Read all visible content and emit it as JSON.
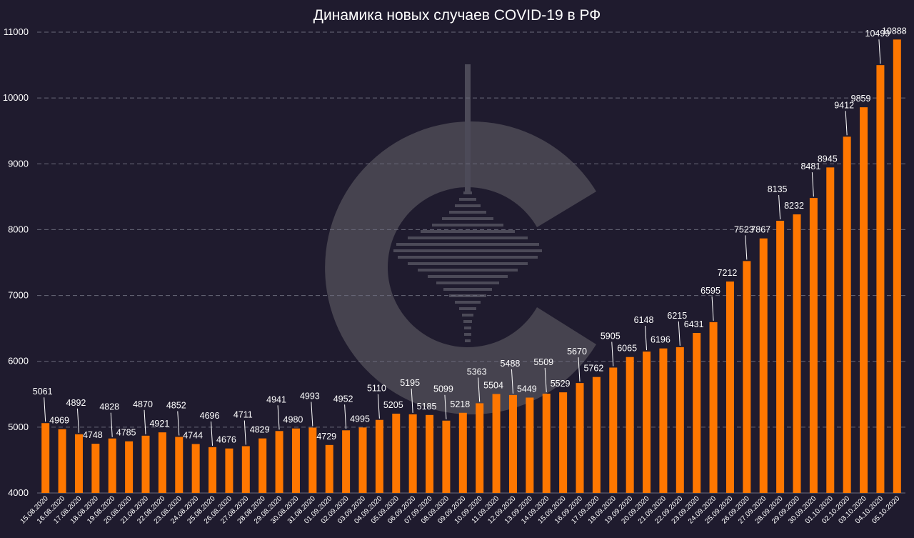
{
  "chart_data": {
    "type": "bar",
    "title": "Динамика новых случаев COVID-19 в РФ",
    "xlabel": "",
    "ylabel": "",
    "ylim": [
      4000,
      11000
    ],
    "yticks": [
      "4000",
      "5000",
      "6000",
      "7000",
      "8000",
      "9000",
      "10000",
      "11000"
    ],
    "grid": true,
    "legend": "none",
    "categories": [
      "15.08.2020",
      "16.08.2020",
      "17.08.2020",
      "18.08.2020",
      "19.08.2020",
      "20.08.2020",
      "21.08.2020",
      "22.08.2020",
      "23.08.2020",
      "24.08.2020",
      "25.08.2020",
      "26.08.2020",
      "27.08.2020",
      "28.08.2020",
      "29.08.2020",
      "30.08.2020",
      "31.08.2020",
      "01.09.2020",
      "02.09.2020",
      "03.09.2020",
      "04.09.2020",
      "05.09.2020",
      "06.09.2020",
      "07.09.2020",
      "08.09.2020",
      "09.09.2020",
      "10.09.2020",
      "11.09.2020",
      "12.09.2020",
      "13.09.2020",
      "14.09.2020",
      "15.09.2020",
      "16.09.2020",
      "17.09.2020",
      "18.09.2020",
      "19.09.2020",
      "20.09.2020",
      "21.09.2020",
      "22.09.2020",
      "23.09.2020",
      "24.09.2020",
      "25.09.2020",
      "26.09.2020",
      "27.09.2020",
      "28.09.2020",
      "29.09.2020",
      "30.09.2020",
      "01.10.2020",
      "02.10.2020",
      "03.10.2020",
      "04.10.2020",
      "05.10.2020"
    ],
    "values": [
      5061,
      4969,
      4892,
      4748,
      4828,
      4785,
      4870,
      4921,
      4852,
      4744,
      4696,
      4676,
      4711,
      4829,
      4941,
      4980,
      4993,
      4729,
      4952,
      4995,
      5110,
      5205,
      5195,
      5185,
      5099,
      5218,
      5363,
      5504,
      5488,
      5449,
      5509,
      5529,
      5670,
      5762,
      5905,
      6065,
      6148,
      6196,
      6215,
      6431,
      6595,
      7212,
      7523,
      7867,
      8135,
      8232,
      8481,
      8945,
      9412,
      9859,
      10499,
      10888
    ],
    "colors": {
      "bar": "#ff7700",
      "background": "#1f1b2e",
      "grid": "#6a6a7a",
      "watermark": "#4a4858"
    }
  }
}
